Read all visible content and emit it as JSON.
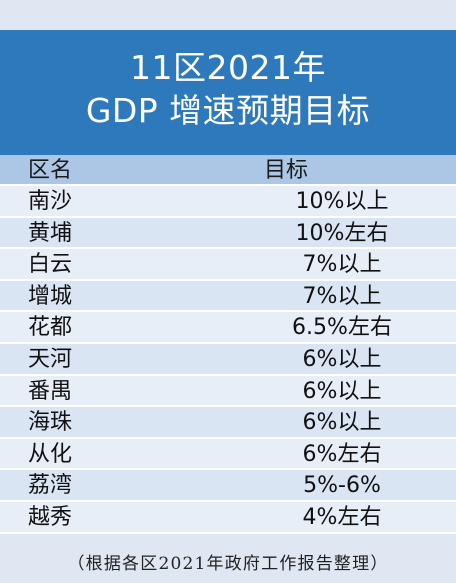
{
  "title": {
    "line1": "11区2021年",
    "line2": "GDP 增速预期目标"
  },
  "table": {
    "headers": {
      "name": "区名",
      "target": "目标"
    },
    "rows": [
      {
        "name": "南沙",
        "target": "10%以上"
      },
      {
        "name": "黄埔",
        "target": "10%左右"
      },
      {
        "name": "白云",
        "target": "7%以上"
      },
      {
        "name": "增城",
        "target": "7%以上"
      },
      {
        "name": "花都",
        "target": "6.5%左右"
      },
      {
        "name": "天河",
        "target": "6%以上"
      },
      {
        "name": "番禺",
        "target": "6%以上"
      },
      {
        "name": "海珠",
        "target": "6%以上"
      },
      {
        "name": "从化",
        "target": "6%左右"
      },
      {
        "name": "荔湾",
        "target": "5%-6%"
      },
      {
        "name": "越秀",
        "target": "4%左右"
      }
    ]
  },
  "footer": {
    "note": "（根据各区2021年政府工作报告整理）"
  },
  "colors": {
    "title_background": "#2d79bb",
    "header_background": "#abc7e5",
    "row_light": "#e8eef7",
    "row_alt": "#d9e5f3",
    "page_background": "#dfe7f2"
  }
}
